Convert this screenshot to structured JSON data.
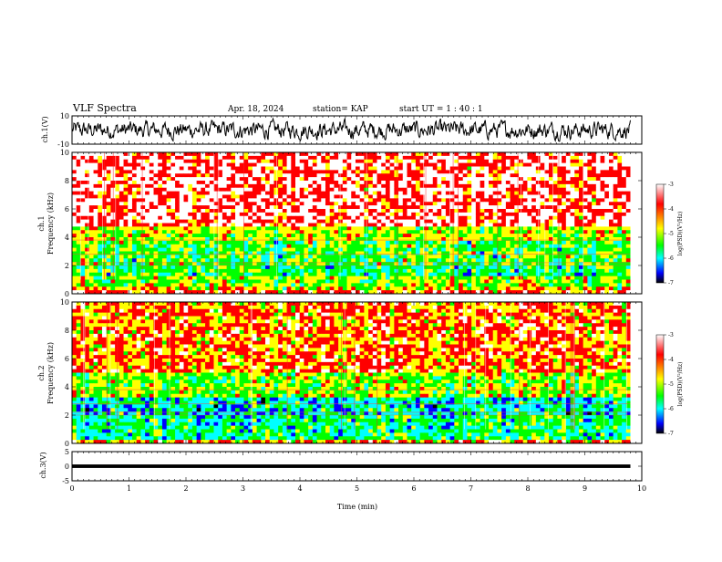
{
  "header": {
    "title": "VLF Spectra",
    "date": "Apr. 18, 2024",
    "station": "station= KAP",
    "start": "start  UT  =   1 : 40 : 1"
  },
  "colorbar": {
    "label": "log(PSD)(V²/Hz)",
    "ticks": [
      "-3",
      "-4",
      "-5",
      "-6",
      "-7"
    ]
  },
  "colors": {
    "ramp": [
      "#ffffff",
      "#ff0000",
      "#ffff00",
      "#00ff00",
      "#00ffff",
      "#0000ff",
      "#000000"
    ]
  },
  "chart_data": [
    {
      "type": "line",
      "name": "ch1-waveform",
      "ylabel": "ch.1(V)",
      "ylim": [
        -10,
        10
      ],
      "yticks": [
        "10",
        "-10"
      ],
      "xlim": [
        0,
        9.8
      ],
      "description_values": "noisy waveform oscillating roughly between -8 and 8 V"
    },
    {
      "type": "heatmap",
      "name": "ch1-spectrogram",
      "ylabel": "ch.1\nFrequency (kHz)",
      "ylabel_lines": [
        "ch.1",
        "Frequency (kHz)"
      ],
      "xlim": [
        0,
        9.8
      ],
      "ylim": [
        0,
        10
      ],
      "yticks": [
        "0",
        "2",
        "4",
        "6",
        "8",
        "10"
      ],
      "clim": [
        -7,
        -3
      ],
      "bands": [
        {
          "fmin": 0,
          "fmax": 0.3,
          "level": -3.7
        },
        {
          "fmin": 0.3,
          "fmax": 0.6,
          "level": -4.3
        },
        {
          "fmin": 0.6,
          "fmax": 1.2,
          "level": -4.7
        },
        {
          "fmin": 1.2,
          "fmax": 2.0,
          "level": -5.2
        },
        {
          "fmin": 2.0,
          "fmax": 3.8,
          "level": -5.0
        },
        {
          "fmin": 3.8,
          "fmax": 4.8,
          "level": -4.5
        },
        {
          "fmin": 4.8,
          "fmax": 10,
          "level": -3.4
        }
      ]
    },
    {
      "type": "heatmap",
      "name": "ch2-spectrogram",
      "ylabel": "ch.2\nFrequency (kHz)",
      "ylabel_lines": [
        "ch.2",
        "Frequency (kHz)"
      ],
      "xlim": [
        0,
        9.8
      ],
      "ylim": [
        0,
        10
      ],
      "yticks": [
        "0",
        "2",
        "4",
        "6",
        "8",
        "10"
      ],
      "clim": [
        -7,
        -3
      ],
      "bands": [
        {
          "fmin": 0,
          "fmax": 0.3,
          "level": -4.0
        },
        {
          "fmin": 0.3,
          "fmax": 2.0,
          "level": -5.3
        },
        {
          "fmin": 2.0,
          "fmax": 3.2,
          "level": -5.6
        },
        {
          "fmin": 3.2,
          "fmax": 5.0,
          "level": -4.7
        },
        {
          "fmin": 5.0,
          "fmax": 10,
          "level": -3.9
        }
      ]
    },
    {
      "type": "line",
      "name": "ch3-waveform",
      "ylabel": "ch.3(V)",
      "ylim": [
        -5,
        5
      ],
      "yticks": [
        "5",
        "0",
        "-5"
      ],
      "xlim": [
        0,
        9.8
      ],
      "band_value": [
        -0.6,
        0.6
      ],
      "xlabel": "Time (min)",
      "xticks": [
        "0",
        "1",
        "2",
        "3",
        "4",
        "5",
        "6",
        "7",
        "8",
        "9",
        "10"
      ],
      "xaxis_range": [
        0,
        10
      ]
    }
  ]
}
